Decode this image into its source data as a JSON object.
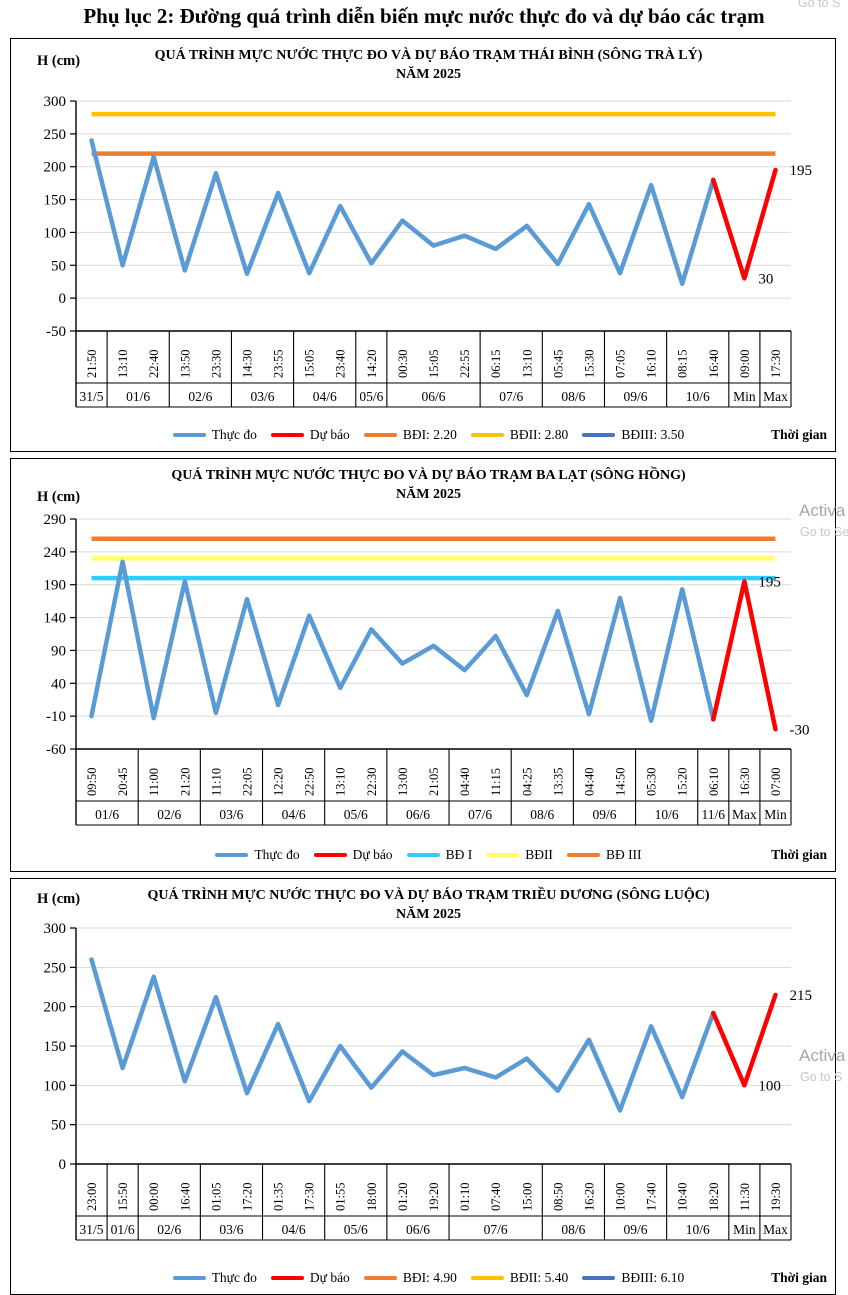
{
  "page": {
    "title": "Phụ lục 2: Đường quá trình diễn biến mực nước thực đo và dự báo các trạm",
    "watermarks": {
      "top": "Go to S",
      "activate_1": "Activa",
      "goto_1": "Go to Se",
      "activate_2": "Activa",
      "goto_2": "Go to S"
    }
  },
  "chart_data": [
    {
      "type": "line",
      "title": "QUÁ TRÌNH MỰC NƯỚC THỰC ĐO VÀ DỰ BÁO TRẠM THÁI BÌNH (SÔNG TRÀ LÝ)",
      "subtitle": "NĂM 2025",
      "ylabel": "H (cm)",
      "xlabel": "Thời gian",
      "ylim": [
        -50,
        300
      ],
      "ytick_step": 50,
      "grid": true,
      "legend_position": "bottom",
      "x_times": [
        "21:50",
        "13:10",
        "22:40",
        "13:50",
        "23:30",
        "14:30",
        "23:55",
        "15:05",
        "23:40",
        "14:20",
        "00:30",
        "15:05",
        "22:55",
        "06:15",
        "13:10",
        "05:45",
        "15:30",
        "07:05",
        "16:10",
        "08:15",
        "16:40",
        "09:00",
        "17:30"
      ],
      "day_groups": [
        {
          "label": "31/5",
          "count": 1
        },
        {
          "label": "01/6",
          "count": 2
        },
        {
          "label": "02/6",
          "count": 2
        },
        {
          "label": "03/6",
          "count": 2
        },
        {
          "label": "04/6",
          "count": 2
        },
        {
          "label": "05/6",
          "count": 1
        },
        {
          "label": "06/6",
          "count": 3
        },
        {
          "label": "07/6",
          "count": 2
        },
        {
          "label": "08/6",
          "count": 2
        },
        {
          "label": "09/6",
          "count": 2
        },
        {
          "label": "10/6",
          "count": 2
        },
        {
          "label": "Min",
          "count": 1
        },
        {
          "label": "Max",
          "count": 1
        }
      ],
      "series": [
        {
          "name": "Thực đo",
          "color": "#5B9BD5",
          "values": [
            240,
            50,
            215,
            42,
            190,
            37,
            160,
            38,
            140,
            53,
            118,
            80,
            95,
            75,
            110,
            52,
            143,
            38,
            172,
            22,
            180,
            null,
            null
          ]
        },
        {
          "name": "Dự báo",
          "color": "#FF0000",
          "values": [
            null,
            null,
            null,
            null,
            null,
            null,
            null,
            null,
            null,
            null,
            null,
            null,
            null,
            null,
            null,
            null,
            null,
            null,
            null,
            null,
            180,
            30,
            195
          ]
        }
      ],
      "alert_lines": [
        {
          "name": "BĐI: 2.20",
          "color": "#ED7D31",
          "value": 220
        },
        {
          "name": "BĐII: 2.80",
          "color": "#FFC000",
          "value": 280
        },
        {
          "name": "BĐIII: 3.50",
          "color": "#4472C4",
          "value": 350
        }
      ],
      "point_labels": [
        {
          "index": 22,
          "text": "195"
        },
        {
          "index": 21,
          "text": "30"
        }
      ]
    },
    {
      "type": "line",
      "title": "QUÁ TRÌNH MỰC NƯỚC THỰC ĐO VÀ DỰ BÁO TRẠM BA LẠT (SÔNG HỒNG)",
      "subtitle": "NĂM 2025",
      "ylabel": "H (cm)",
      "xlabel": "Thời gian",
      "ylim": [
        -60,
        290
      ],
      "ytick_step": 50,
      "grid": true,
      "legend_position": "bottom",
      "x_times": [
        "09:50",
        "20:45",
        "11:00",
        "21:20",
        "11:10",
        "22:05",
        "12:20",
        "22:50",
        "13:10",
        "22:30",
        "13:00",
        "21:05",
        "04:40",
        "11:15",
        "04:25",
        "13:35",
        "04:40",
        "14:50",
        "05:30",
        "15:20",
        "06:10",
        "16:30",
        "07:00"
      ],
      "day_groups": [
        {
          "label": "01/6",
          "count": 2
        },
        {
          "label": "02/6",
          "count": 2
        },
        {
          "label": "03/6",
          "count": 2
        },
        {
          "label": "04/6",
          "count": 2
        },
        {
          "label": "05/6",
          "count": 2
        },
        {
          "label": "06/6",
          "count": 2
        },
        {
          "label": "07/6",
          "count": 2
        },
        {
          "label": "08/6",
          "count": 2
        },
        {
          "label": "09/6",
          "count": 2
        },
        {
          "label": "10/6",
          "count": 2
        },
        {
          "label": "11/6",
          "count": 1
        },
        {
          "label": "Max",
          "count": 1
        },
        {
          "label": "Min",
          "count": 1
        }
      ],
      "series": [
        {
          "name": "Thực đo",
          "color": "#5B9BD5",
          "values": [
            -10,
            225,
            -13,
            195,
            -5,
            168,
            7,
            143,
            33,
            122,
            70,
            97,
            60,
            112,
            22,
            150,
            -7,
            170,
            -17,
            183,
            -15,
            null,
            null
          ]
        },
        {
          "name": "Dự báo",
          "color": "#FF0000",
          "values": [
            null,
            null,
            null,
            null,
            null,
            null,
            null,
            null,
            null,
            null,
            null,
            null,
            null,
            null,
            null,
            null,
            null,
            null,
            null,
            null,
            -15,
            195,
            -30
          ]
        }
      ],
      "alert_lines": [
        {
          "name": "BĐ I",
          "color": "#33CCFF",
          "value": 200
        },
        {
          "name": "BĐII",
          "color": "#FFFF66",
          "value": 230
        },
        {
          "name": "BĐ III",
          "color": "#ED7D31",
          "value": 260
        }
      ],
      "point_labels": [
        {
          "index": 21,
          "text": "195"
        },
        {
          "index": 22,
          "text": "-30"
        }
      ]
    },
    {
      "type": "line",
      "title": "QUÁ TRÌNH MỰC NƯỚC THỰC ĐO VÀ DỰ BÁO TRẠM TRIỀU DƯƠNG  (SÔNG LUỘC)",
      "subtitle": "NĂM 2025",
      "ylabel": "H (cm)",
      "xlabel": "Thời gian",
      "ylim": [
        0,
        300
      ],
      "ytick_step": 50,
      "grid": true,
      "legend_position": "bottom",
      "x_times": [
        "23:00",
        "15:50",
        "00:00",
        "16:40",
        "01:05",
        "17:20",
        "01:35",
        "17:30",
        "01:55",
        "18:00",
        "01:20",
        "19:20",
        "01:10",
        "07:40",
        "15:00",
        "08:50",
        "16:20",
        "10:00",
        "17:40",
        "10:40",
        "18:20",
        "11:30",
        "19:30"
      ],
      "day_groups": [
        {
          "label": "31/5",
          "count": 1
        },
        {
          "label": "01/6",
          "count": 1
        },
        {
          "label": "02/6",
          "count": 2
        },
        {
          "label": "03/6",
          "count": 2
        },
        {
          "label": "04/6",
          "count": 2
        },
        {
          "label": "05/6",
          "count": 2
        },
        {
          "label": "06/6",
          "count": 2
        },
        {
          "label": "07/6",
          "count": 3
        },
        {
          "label": "08/6",
          "count": 2
        },
        {
          "label": "09/6",
          "count": 2
        },
        {
          "label": "10/6",
          "count": 2
        },
        {
          "label": "Min",
          "count": 1
        },
        {
          "label": "Max",
          "count": 1
        }
      ],
      "series": [
        {
          "name": "Thực đo",
          "color": "#5B9BD5",
          "values": [
            260,
            122,
            238,
            105,
            212,
            90,
            178,
            80,
            150,
            97,
            143,
            113,
            122,
            110,
            134,
            93,
            158,
            68,
            175,
            85,
            192,
            null,
            null
          ]
        },
        {
          "name": "Dự báo",
          "color": "#FF0000",
          "values": [
            null,
            null,
            null,
            null,
            null,
            null,
            null,
            null,
            null,
            null,
            null,
            null,
            null,
            null,
            null,
            null,
            null,
            null,
            null,
            null,
            192,
            100,
            215
          ]
        }
      ],
      "alert_lines": [
        {
          "name": "BĐI: 4.90",
          "color": "#ED7D31",
          "value": 490
        },
        {
          "name": "BĐII: 5.40",
          "color": "#FFC000",
          "value": 540
        },
        {
          "name": "BĐIII: 6.10",
          "color": "#4472C4",
          "value": 610
        }
      ],
      "point_labels": [
        {
          "index": 22,
          "text": "215"
        },
        {
          "index": 21,
          "text": "100"
        }
      ]
    }
  ]
}
